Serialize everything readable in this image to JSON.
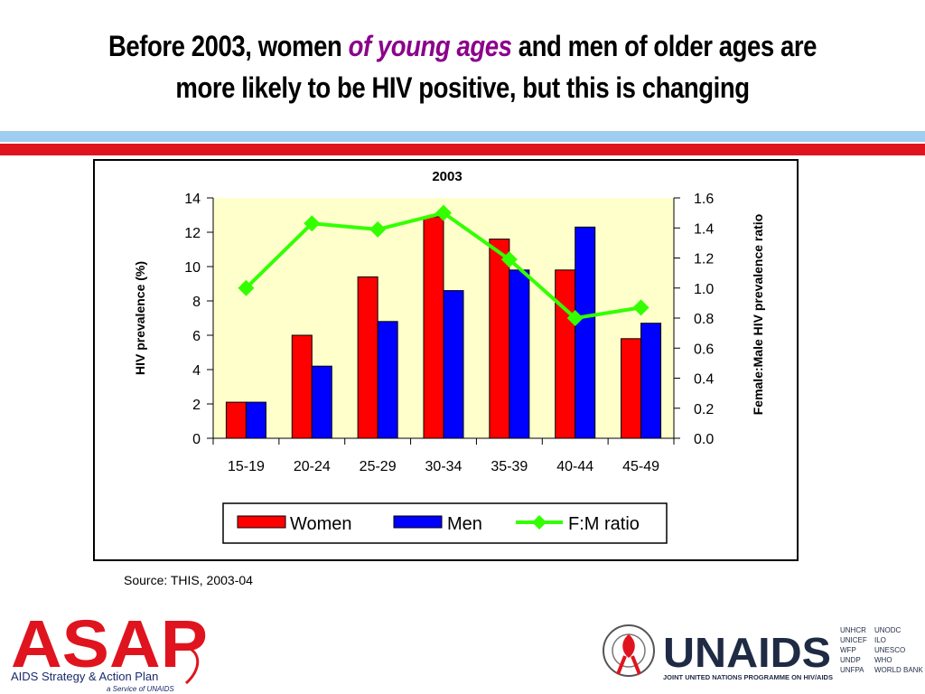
{
  "slide": {
    "title_part1": "Before 2003, women ",
    "title_emph": "of young ages",
    "title_part2": " and men of older ages are",
    "title_line2": "more likely to be HIV positive, but this is changing",
    "source": "Source: THIS, 2003-04"
  },
  "colors": {
    "women": "#ff0000",
    "men": "#0000ff",
    "ratio": "#33ff00",
    "plot_bg": "#ffffcc",
    "title_emph": "#8b008b",
    "rule_top": "#9fcdf0",
    "rule_bottom": "#e0141e"
  },
  "chart_data": {
    "type": "bar",
    "title": "2003",
    "categories": [
      "15-19",
      "20-24",
      "25-29",
      "30-34",
      "35-39",
      "40-44",
      "45-49"
    ],
    "series": [
      {
        "name": "Women",
        "type": "bar",
        "axis": "left",
        "values": [
          2.1,
          6.0,
          9.4,
          12.9,
          11.6,
          9.8,
          5.8
        ]
      },
      {
        "name": "Men",
        "type": "bar",
        "axis": "left",
        "values": [
          2.1,
          4.2,
          6.8,
          8.6,
          9.8,
          12.3,
          6.7
        ]
      },
      {
        "name": "F:M ratio",
        "type": "line",
        "axis": "right",
        "values": [
          1.0,
          1.43,
          1.39,
          1.5,
          1.19,
          0.8,
          0.87
        ]
      }
    ],
    "ylabel": "HIV prevalence (%)",
    "y2label": "Female:Male HIV prevalence ratio",
    "ylim": [
      0,
      14
    ],
    "yticks": [
      "0",
      "2",
      "4",
      "6",
      "8",
      "10",
      "12",
      "14"
    ],
    "y2lim": [
      0,
      1.6
    ],
    "y2ticks": [
      "0.0",
      "0.2",
      "0.4",
      "0.6",
      "0.8",
      "1.0",
      "1.2",
      "1.4",
      "1.6"
    ],
    "legend_position": "bottom",
    "grid": false
  },
  "logos": {
    "asap_wordmark": "ASAP",
    "asap_tagline": "AIDS Strategy & Action Plan",
    "asap_service": "a Service of UNAIDS",
    "unaids_wordmark": "UNAIDS",
    "unaids_tagline": "JOINT UNITED NATIONS PROGRAMME ON HIV/AIDS",
    "cosponsors_col1": [
      "UNHCR",
      "UNICEF",
      "WFP",
      "UNDP",
      "UNFPA"
    ],
    "cosponsors_col2": [
      "UNODC",
      "ILO",
      "UNESCO",
      "WHO",
      "WORLD BANK"
    ]
  }
}
